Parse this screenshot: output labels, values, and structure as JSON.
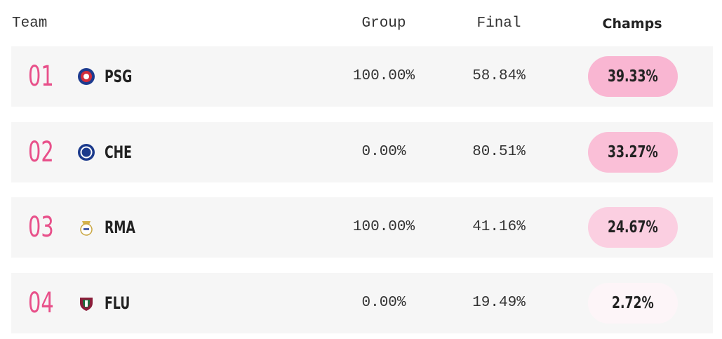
{
  "header": {
    "team": "Team",
    "group": "Group",
    "final": "Final",
    "champs": "Champs"
  },
  "rows": [
    {
      "rank": "01",
      "team": "PSG",
      "group": "100.00%",
      "final": "58.84%",
      "champs": "39.33%"
    },
    {
      "rank": "02",
      "team": "CHE",
      "group": "0.00%",
      "final": "80.51%",
      "champs": "33.27%"
    },
    {
      "rank": "03",
      "team": "RMA",
      "group": "100.00%",
      "final": "41.16%",
      "champs": "24.67%"
    },
    {
      "rank": "04",
      "team": "FLU",
      "group": "0.00%",
      "final": "19.49%",
      "champs": "2.72%"
    }
  ]
}
